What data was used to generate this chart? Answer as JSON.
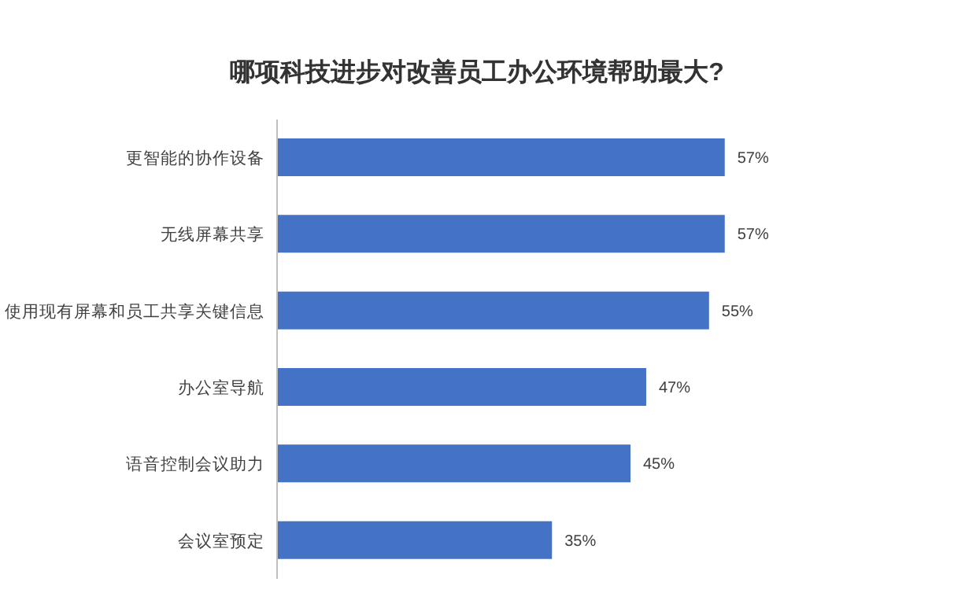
{
  "chart_data": {
    "type": "bar",
    "orientation": "horizontal",
    "title": "哪项科技进步对改善员工办公环境帮助最大?",
    "categories": [
      "更智能的协作设备",
      "无线屏幕共享",
      "使用现有屏幕和员工共享关键信息",
      "办公室导航",
      "语音控制会议助力",
      "会议室预定"
    ],
    "values": [
      57,
      57,
      55,
      47,
      45,
      35
    ],
    "value_labels": [
      "57%",
      "57%",
      "55%",
      "47%",
      "45%",
      "35%"
    ],
    "color": "#4472c4",
    "legend": false,
    "grid": false
  }
}
